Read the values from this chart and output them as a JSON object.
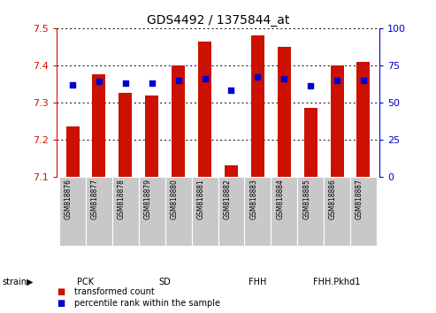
{
  "title": "GDS4492 / 1375844_at",
  "samples": [
    "GSM818876",
    "GSM818877",
    "GSM818878",
    "GSM818879",
    "GSM818880",
    "GSM818881",
    "GSM818882",
    "GSM818883",
    "GSM818884",
    "GSM818885",
    "GSM818886",
    "GSM818887"
  ],
  "red_values": [
    7.235,
    7.375,
    7.325,
    7.32,
    7.4,
    7.465,
    7.13,
    7.48,
    7.45,
    7.285,
    7.4,
    7.41
  ],
  "blue_pct": [
    62,
    64,
    63,
    63,
    65,
    66,
    58,
    67,
    66,
    61,
    65,
    65
  ],
  "ylim_left": [
    7.1,
    7.5
  ],
  "ylim_right": [
    0,
    100
  ],
  "yticks_left": [
    7.1,
    7.2,
    7.3,
    7.4,
    7.5
  ],
  "yticks_right": [
    0,
    25,
    50,
    75,
    100
  ],
  "groups": [
    {
      "label": "PCK",
      "start": 0,
      "end": 2,
      "color": "#d4f5d4"
    },
    {
      "label": "SD",
      "start": 2,
      "end": 6,
      "color": "#5dc85d"
    },
    {
      "label": "FHH",
      "start": 6,
      "end": 9,
      "color": "#5dc85d"
    },
    {
      "label": "FHH.Pkhd1",
      "start": 9,
      "end": 12,
      "color": "#5dc85d"
    }
  ],
  "bar_color": "#cc1100",
  "dot_color": "#0000cc",
  "bar_width": 0.5,
  "xtick_bg": "#c8c8c8",
  "legend_red": "transformed count",
  "legend_blue": "percentile rank within the sample"
}
